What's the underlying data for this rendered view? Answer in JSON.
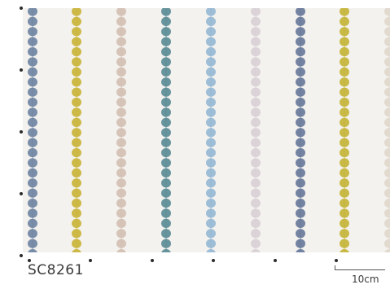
{
  "product": {
    "code": "SC8261"
  },
  "scale": {
    "label": "10cm"
  },
  "pattern": {
    "stripe_colors": [
      "#6f85a3",
      "#c9b43a",
      "#d2c0b3",
      "#5b8c96",
      "#96b8d4",
      "#d8d0d6",
      "#67799a",
      "#c4b53a",
      "#e0d8cc"
    ],
    "background_color": "#f4f2ee"
  }
}
